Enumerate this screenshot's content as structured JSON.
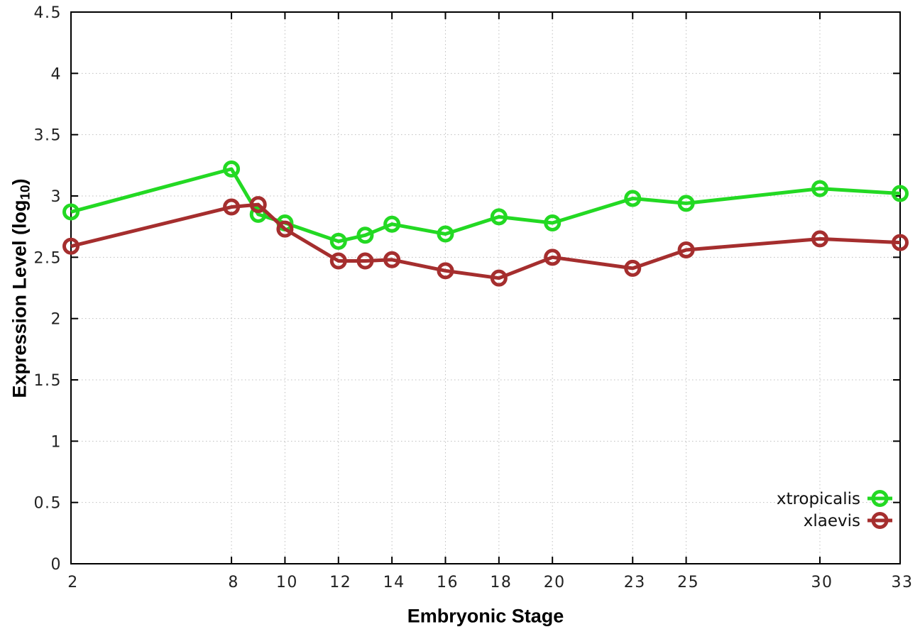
{
  "chart_data": {
    "type": "line",
    "title": "",
    "xlabel": "Embryonic Stage",
    "ylabel": {
      "main": "Expression Level (log",
      "sub": "10",
      "end": ")"
    },
    "x": [
      2,
      8,
      9,
      10,
      12,
      13,
      14,
      16,
      18,
      20,
      23,
      25,
      30,
      33
    ],
    "series": [
      {
        "name": "xtropicalis",
        "color": "#23d923",
        "values": [
          2.87,
          3.22,
          2.85,
          2.78,
          2.63,
          2.68,
          2.77,
          2.69,
          2.83,
          2.78,
          2.98,
          2.94,
          3.06,
          3.02
        ]
      },
      {
        "name": "xlaevis",
        "color": "#a52e2e",
        "values": [
          2.59,
          2.91,
          2.93,
          2.73,
          2.47,
          2.47,
          2.48,
          2.39,
          2.33,
          2.5,
          2.41,
          2.56,
          2.65,
          2.62
        ]
      }
    ],
    "xlim": [
      2,
      33
    ],
    "ylim": [
      0,
      4.5
    ],
    "xticks": [
      {
        "v": 2,
        "label": "2"
      },
      {
        "v": 8,
        "label": "8"
      },
      {
        "v": 10,
        "label": "10"
      },
      {
        "v": 12,
        "label": "12"
      },
      {
        "v": 14,
        "label": "14"
      },
      {
        "v": 16,
        "label": "16"
      },
      {
        "v": 18,
        "label": "18"
      },
      {
        "v": 20,
        "label": "20"
      },
      {
        "v": 23,
        "label": "23"
      },
      {
        "v": 25,
        "label": "25"
      },
      {
        "v": 30,
        "label": "30"
      },
      {
        "v": 33,
        "label": "33"
      }
    ],
    "yticks": [
      {
        "v": 0,
        "label": "0"
      },
      {
        "v": 0.5,
        "label": "0.5"
      },
      {
        "v": 1,
        "label": "1"
      },
      {
        "v": 1.5,
        "label": "1.5"
      },
      {
        "v": 2,
        "label": "2"
      },
      {
        "v": 2.5,
        "label": "2.5"
      },
      {
        "v": 3,
        "label": "3"
      },
      {
        "v": 3.5,
        "label": "3.5"
      },
      {
        "v": 4,
        "label": "4"
      },
      {
        "v": 4.5,
        "label": "4.5"
      }
    ],
    "grid": true,
    "legend_position": "bottom-right",
    "legend": [
      {
        "label": "xtropicalis",
        "color": "#23d923"
      },
      {
        "label": "xlaevis",
        "color": "#a52e2e"
      }
    ],
    "colors": {
      "grid": "#bfbfbf",
      "border": "#000000",
      "tick_text": "#222222"
    }
  }
}
